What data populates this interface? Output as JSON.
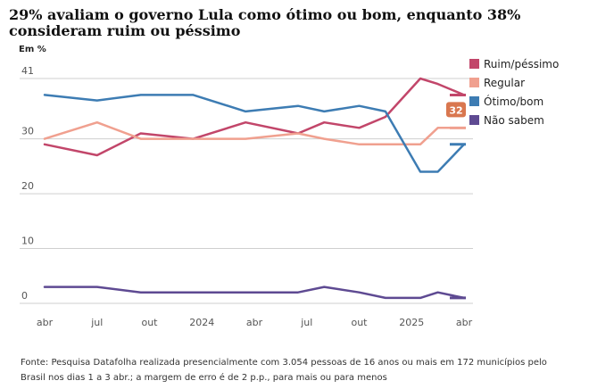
{
  "header": {
    "title": "29% avaliam o governo Lula como ótimo ou bom, enquanto 38% consideram ruim ou péssimo",
    "unit_label": "Em %"
  },
  "footer": {
    "source": "Fonte: Pesquisa Datafolha realizada presencialmente com 3.054 pessoas de 16 anos ou mais em 172 municípios pelo Brasil nos dias 1 a 3 abr.; a margem de erro é de 2 p.p., para mais ou para menos"
  },
  "colors": {
    "ruim": "#c2466a",
    "regular": "#f0a08f",
    "otimo": "#3d7cb3",
    "nao_sabem": "#5e4a92",
    "grid": "#cfcfcf"
  },
  "chart_data": {
    "type": "line",
    "title": "29% avaliam o governo Lula como ótimo ou bom, enquanto 38% consideram ruim ou péssimo",
    "ylabel": "Em %",
    "xlabel": "",
    "ylim": [
      0,
      41
    ],
    "xlim": [
      0,
      24
    ],
    "y_ticks": [
      {
        "value": 41,
        "label": "41"
      },
      {
        "value": 30,
        "label": "30"
      },
      {
        "value": 20,
        "label": "20"
      },
      {
        "value": 10,
        "label": "10"
      },
      {
        "value": 0,
        "label": "0"
      }
    ],
    "x_ticks": [
      {
        "value": 0,
        "label": "abr"
      },
      {
        "value": 3,
        "label": "jul"
      },
      {
        "value": 6,
        "label": "out"
      },
      {
        "value": 9,
        "label": "2024"
      },
      {
        "value": 12,
        "label": "abr"
      },
      {
        "value": 15,
        "label": "jul"
      },
      {
        "value": 18,
        "label": "out"
      },
      {
        "value": 21,
        "label": "2025"
      },
      {
        "value": 24,
        "label": "abr"
      }
    ],
    "x": [
      0,
      3,
      5.5,
      8.5,
      11.5,
      14.5,
      16,
      18,
      19.5,
      21.5,
      22.5,
      24
    ],
    "series": [
      {
        "key": "ruim",
        "name": "Ruim/péssimo",
        "values": [
          29,
          27,
          31,
          30,
          33,
          31,
          33,
          32,
          34,
          41,
          40,
          38
        ]
      },
      {
        "key": "regular",
        "name": "Regular",
        "values": [
          30,
          33,
          30,
          30,
          30,
          31,
          30,
          29,
          29,
          29,
          32,
          32
        ]
      },
      {
        "key": "otimo",
        "name": "Ótimo/bom",
        "values": [
          38,
          37,
          38,
          38,
          35,
          36,
          35,
          36,
          35,
          24,
          24,
          29
        ]
      },
      {
        "key": "nao_sabem",
        "name": "Não sabem",
        "values": [
          3,
          3,
          2,
          2,
          2,
          2,
          3,
          2,
          1,
          1,
          2,
          1
        ]
      }
    ],
    "highlight": {
      "series": "regular",
      "label": "32"
    },
    "legend": {
      "position": "top-right"
    }
  }
}
